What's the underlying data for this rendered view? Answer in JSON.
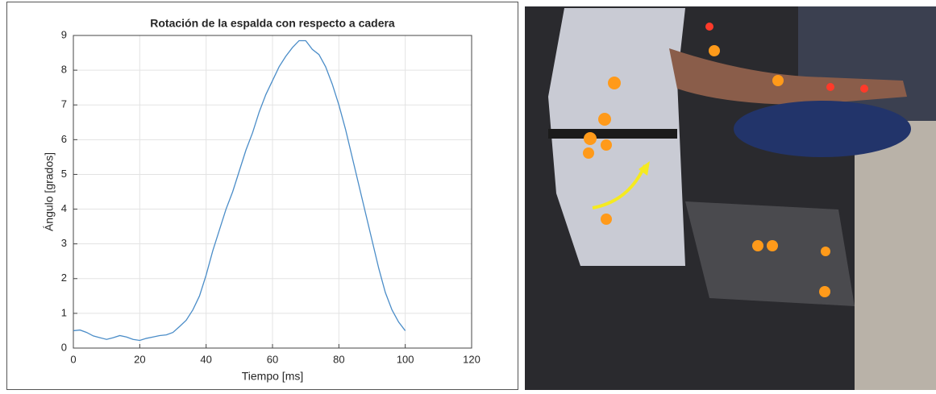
{
  "chart_data": {
    "type": "line",
    "title": "Rotación de la espalda con respecto a cadera",
    "xlabel": "Tiempo [ms]",
    "ylabel": "Ángulo [grados]",
    "x": [
      0,
      2,
      4,
      6,
      8,
      10,
      12,
      14,
      16,
      18,
      20,
      22,
      24,
      26,
      28,
      30,
      32,
      34,
      36,
      38,
      40,
      42,
      44,
      46,
      48,
      50,
      52,
      54,
      56,
      58,
      60,
      62,
      64,
      66,
      68,
      70,
      72,
      74,
      76,
      78,
      80,
      82,
      84,
      86,
      88,
      90,
      92,
      94,
      96,
      98,
      100
    ],
    "values": [
      0.5,
      0.52,
      0.45,
      0.35,
      0.3,
      0.25,
      0.3,
      0.36,
      0.32,
      0.25,
      0.22,
      0.28,
      0.32,
      0.36,
      0.38,
      0.45,
      0.62,
      0.8,
      1.1,
      1.5,
      2.1,
      2.8,
      3.4,
      4.0,
      4.5,
      5.1,
      5.7,
      6.2,
      6.8,
      7.3,
      7.7,
      8.1,
      8.4,
      8.65,
      8.85,
      8.85,
      8.6,
      8.45,
      8.1,
      7.6,
      7.0,
      6.3,
      5.5,
      4.7,
      3.9,
      3.1,
      2.3,
      1.6,
      1.1,
      0.75,
      0.5
    ],
    "color": "#4b8dc8",
    "xlim": [
      0,
      120
    ],
    "xticks": [
      0,
      20,
      40,
      60,
      80,
      100,
      120
    ],
    "ylim": [
      0,
      9
    ],
    "yticks": [
      0,
      1,
      2,
      3,
      4,
      5,
      6,
      7,
      8,
      9
    ],
    "grid": true
  }
}
